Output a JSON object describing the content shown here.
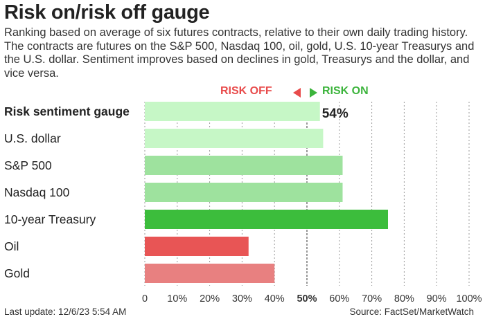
{
  "title": "Risk on/risk off gauge",
  "subtitle": "Ranking based on average of six futures contracts, relative to their own daily trading history. The contracts are futures on the S&P 500, Nasdaq 100, oil, gold, U.S. 10-year Treasurys and the U.S. dollar. Sentiment improves based on declines in gold, Treasurys and the dollar, and vice versa.",
  "legend": {
    "risk_off": "RISK OFF",
    "risk_on": "RISK ON"
  },
  "footer": {
    "last_update": "Last update: 12/6/23 5:54 AM",
    "source": "Source: FactSet/MarketWatch"
  },
  "chart_data": {
    "type": "bar",
    "orientation": "horizontal",
    "categories": [
      "Risk sentiment gauge",
      "U.S. dollar",
      "S&P 500",
      "Nasdaq 100",
      "10-year Treasury",
      "Oil",
      "Gold"
    ],
    "values": [
      54,
      55,
      61,
      61,
      75,
      32,
      40
    ],
    "data_labels": [
      "54%",
      "",
      "",
      "",
      "",
      "",
      ""
    ],
    "bar_colors": [
      "#c6f7c6",
      "#c6f7c6",
      "#9ee29e",
      "#9ee29e",
      "#3cbd3c",
      "#e85555",
      "#e88080"
    ],
    "xlim": [
      0,
      100
    ],
    "x_ticks": [
      "0",
      "10%",
      "20%",
      "30%",
      "40%",
      "50%",
      "60%",
      "70%",
      "80%",
      "90%",
      "100%"
    ],
    "gridlines": "dotted vertical",
    "center_line": 50
  }
}
